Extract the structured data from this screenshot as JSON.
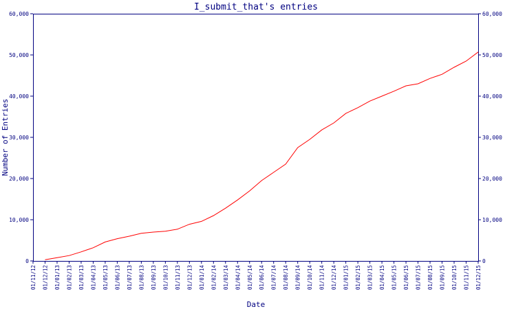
{
  "chart_data": {
    "type": "line",
    "title": "I_submit_that's entries",
    "xlabel": "Date",
    "ylabel": "Number of Entries",
    "ylim": [
      0,
      60000
    ],
    "y_ticks": [
      0,
      10000,
      20000,
      30000,
      40000,
      50000,
      60000
    ],
    "y_tick_labels": [
      "0",
      "10,000",
      "20,000",
      "30,000",
      "40,000",
      "50,000",
      "60,000"
    ],
    "x_tick_labels": [
      "01/11/12",
      "01/12/12",
      "01/01/13",
      "01/02/13",
      "01/03/13",
      "01/04/13",
      "01/05/13",
      "01/06/13",
      "01/07/13",
      "01/08/13",
      "01/09/13",
      "01/10/13",
      "01/11/13",
      "01/12/13",
      "01/01/14",
      "01/02/14",
      "01/03/14",
      "01/04/14",
      "01/05/14",
      "01/06/14",
      "01/07/14",
      "01/08/14",
      "01/09/14",
      "01/10/14",
      "01/11/14",
      "01/12/14",
      "01/01/15",
      "01/02/15",
      "01/03/15",
      "01/04/15",
      "01/05/15",
      "01/06/15",
      "01/07/15",
      "01/08/15",
      "01/09/15",
      "01/10/15",
      "01/11/15",
      "01/12/15"
    ],
    "grid": false,
    "axis_color": "#000080",
    "series": [
      {
        "color": "#ff0000",
        "x": [
          "01/12/12",
          "01/01/13",
          "01/02/13",
          "01/03/13",
          "01/04/13",
          "01/05/13",
          "01/06/13",
          "01/07/13",
          "01/08/13",
          "01/09/13",
          "01/10/13",
          "01/11/13",
          "01/12/13",
          "01/01/14",
          "01/02/14",
          "01/03/14",
          "01/04/14",
          "01/05/14",
          "01/06/14",
          "01/07/14",
          "01/08/14",
          "01/09/14",
          "01/10/14",
          "01/11/14",
          "01/12/14",
          "01/01/15",
          "01/02/15",
          "01/03/15",
          "01/04/15",
          "01/05/15",
          "01/06/15",
          "01/07/15",
          "01/08/15",
          "01/09/15",
          "01/10/15",
          "01/11/15",
          "01/12/15"
        ],
        "values": [
          300,
          800,
          1300,
          2200,
          3200,
          4600,
          5400,
          6000,
          6700,
          7000,
          7200,
          7700,
          8900,
          9600,
          11000,
          12800,
          14800,
          17000,
          19500,
          21500,
          23500,
          27500,
          29500,
          31800,
          33500,
          35800,
          37200,
          38800,
          40000,
          41200,
          42500,
          43000,
          44300,
          45300,
          47000,
          48500,
          50700
        ]
      }
    ]
  }
}
